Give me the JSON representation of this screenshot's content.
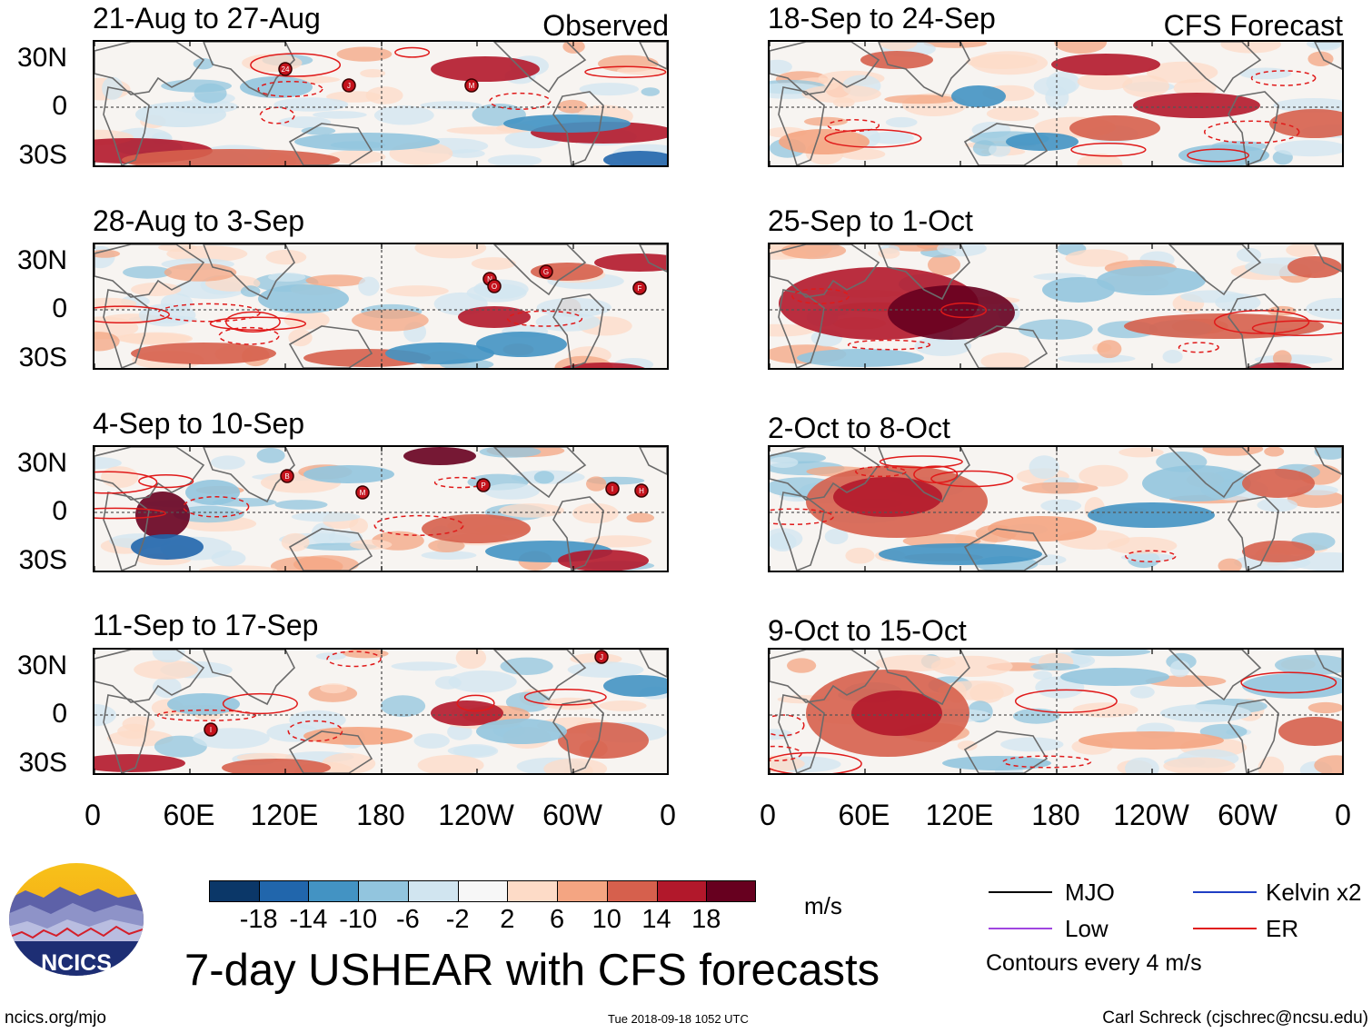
{
  "chart_data": {
    "type": "heatmap",
    "title": "7-day USHEAR with CFS forecasts",
    "units": "m/s",
    "left_column_label": "Observed",
    "right_column_label": "CFS Forecast",
    "left_panels": [
      "21-Aug to 27-Aug",
      "28-Aug to 3-Sep",
      "4-Sep to 10-Sep",
      "11-Sep to 17-Sep"
    ],
    "right_panels": [
      "18-Sep to 24-Sep",
      "25-Sep to 1-Oct",
      "2-Oct to 8-Oct",
      "9-Oct to 15-Oct"
    ],
    "y_ticks": [
      "30N",
      "0",
      "30S"
    ],
    "x_ticks": [
      "0",
      "60E",
      "120E",
      "180",
      "120W",
      "60W",
      "0"
    ],
    "colorbar_levels": [
      "-18",
      "-14",
      "-10",
      "-6",
      "-2",
      "2",
      "6",
      "10",
      "14",
      "18"
    ],
    "colorbar_colors": [
      "#0b3768",
      "#2166ac",
      "#4393c3",
      "#92c5de",
      "#d1e5f0",
      "#f7f7f7",
      "#fddbc7",
      "#f4a582",
      "#d6604d",
      "#b2182b",
      "#67001f"
    ],
    "legend": [
      {
        "label": "MJO",
        "color": "#000000"
      },
      {
        "label": "Kelvin x2",
        "color": "#1f3ec4"
      },
      {
        "label": "Low",
        "color": "#a046e0"
      },
      {
        "label": "ER",
        "color": "#e01a1a"
      }
    ],
    "contour_note": "Contours every 4 m/s"
  },
  "storm_markers": {
    "panel1": [
      "24",
      "J",
      "M"
    ],
    "panel2": [
      "N",
      "O",
      "G",
      "F"
    ],
    "panel3": [
      "B",
      "M",
      "P",
      "I",
      "H"
    ],
    "panel4": [
      "I",
      "J"
    ]
  },
  "footer": {
    "logo_text": "NCICS",
    "url": "ncics.org/mjo",
    "timestamp": "Tue 2018-09-18 1052 UTC",
    "author": "Carl Schreck (cjschrec@ncsu.edu)"
  }
}
